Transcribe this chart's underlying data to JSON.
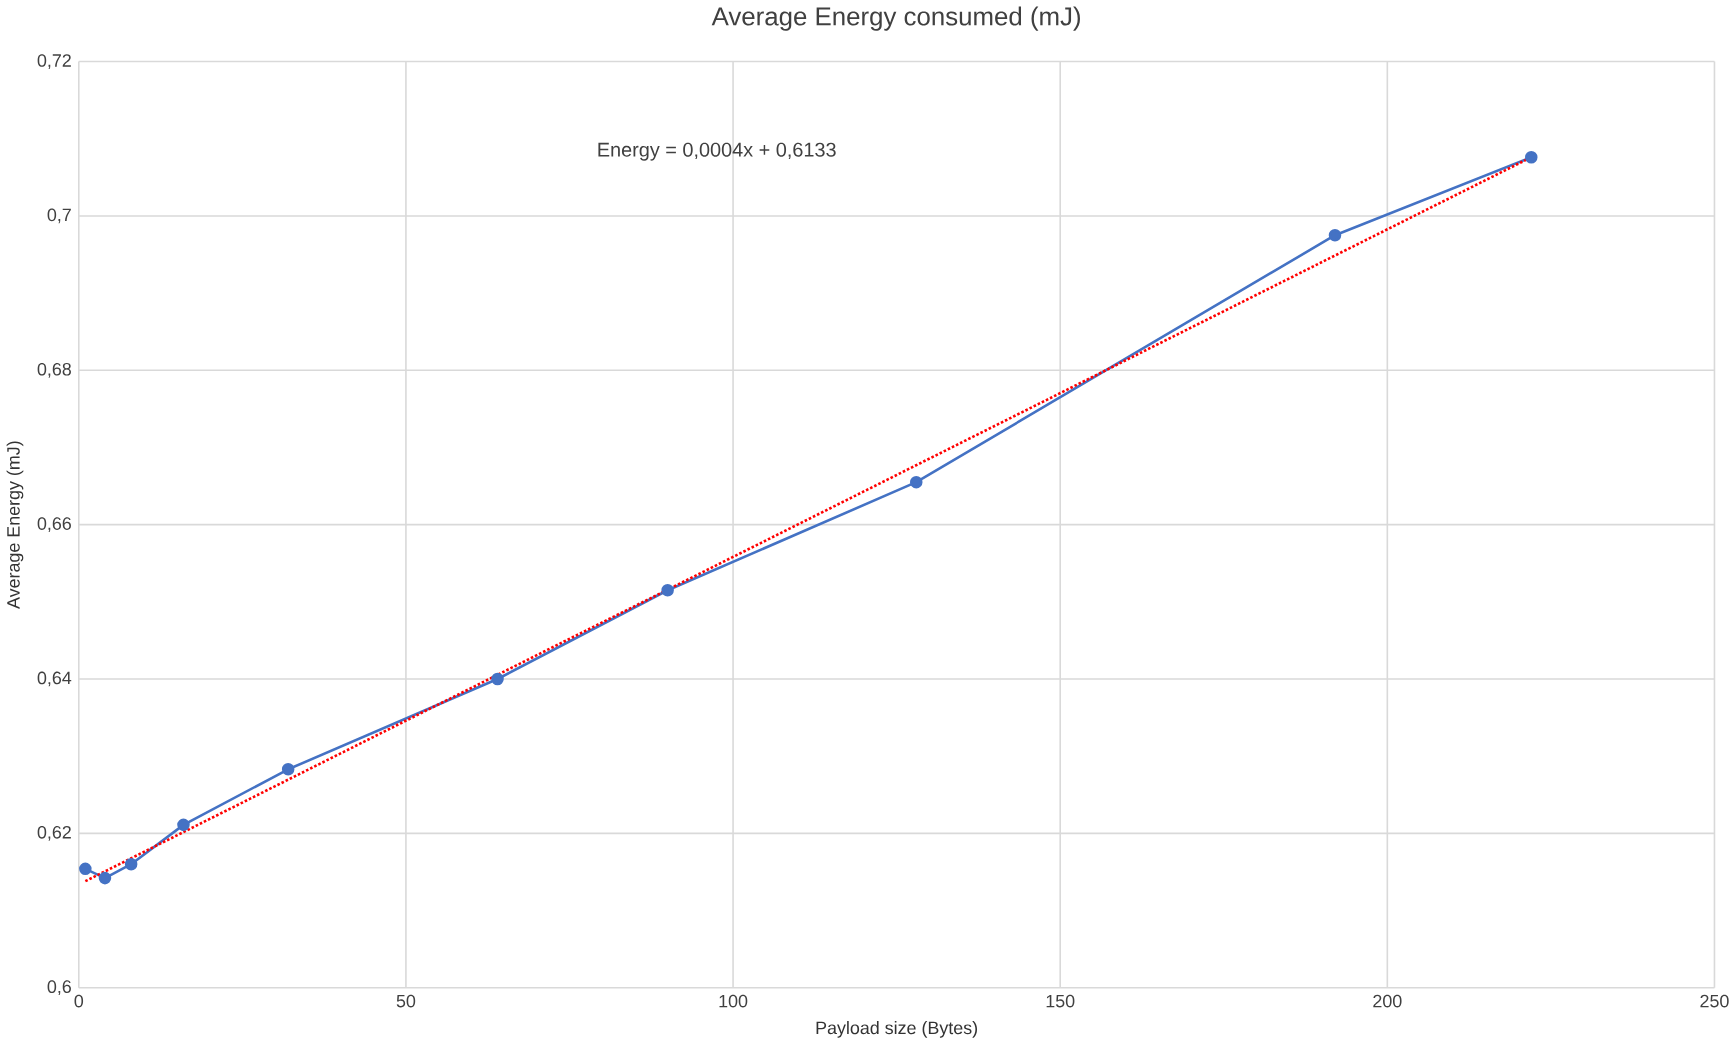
{
  "chart_data": {
    "type": "line",
    "title": "Average Energy consumed (mJ)",
    "xlabel": "Payload size (Bytes)",
    "ylabel": "Average Energy (mJ)",
    "xlim": [
      0,
      250
    ],
    "xticks": [
      0,
      50,
      100,
      150,
      200,
      250
    ],
    "ylim": [
      0.6,
      0.72
    ],
    "yticks": [
      {
        "value": 0.6,
        "label": "0,6"
      },
      {
        "value": 0.62,
        "label": "0,62"
      },
      {
        "value": 0.64,
        "label": "0,64"
      },
      {
        "value": 0.66,
        "label": "0,66"
      },
      {
        "value": 0.68,
        "label": "0,68"
      },
      {
        "value": 0.7,
        "label": "0,7"
      },
      {
        "value": 0.72,
        "label": "0,72"
      }
    ],
    "grid": true,
    "series": [
      {
        "color": "#4472c4",
        "marker": "circle",
        "line_style": "solid",
        "x": [
          1,
          4,
          8,
          16,
          32,
          64,
          90,
          128,
          192,
          222
        ],
        "values": [
          0.6154,
          0.6142,
          0.616,
          0.6211,
          0.6283,
          0.64,
          0.6515,
          0.6655,
          0.6975,
          0.7076
        ]
      },
      {
        "color": "#ff0000",
        "marker": "none",
        "line_style": "dotted",
        "x": [
          1,
          222
        ],
        "values": [
          0.6138,
          0.7076
        ]
      }
    ],
    "annotations": [
      "Energy = 0,0004x + 0,6133"
    ]
  }
}
